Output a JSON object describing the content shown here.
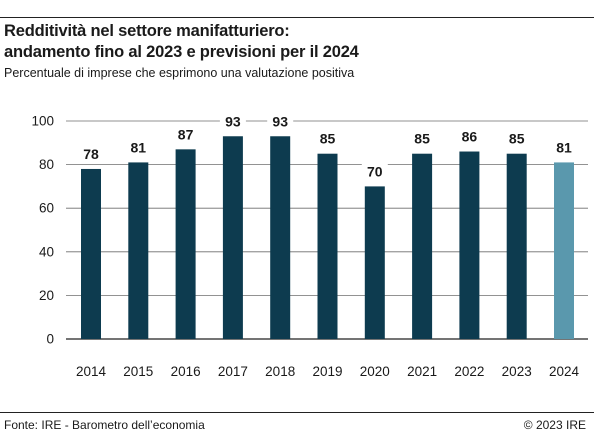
{
  "header": {
    "title_line1": "Redditività nel settore manifatturiero:",
    "title_line2": "andamento fino al 2023 e previsioni per il 2024",
    "subtitle": "Percentuale di imprese che esprimono una valutazione positiva"
  },
  "footer": {
    "source": "Fontе: IRE - Barometro dell’economia",
    "copyright": "© 2023 IRE"
  },
  "colors": {
    "actual": "#0d3b4f",
    "forecast": "#5a98ad",
    "grid": "#6e6e6e",
    "text": "#1a1a1a"
  },
  "chart_data": {
    "type": "bar",
    "categories": [
      "2014",
      "2015",
      "2016",
      "2017",
      "2018",
      "2019",
      "2020",
      "2021",
      "2022",
      "2023",
      "2024"
    ],
    "values": [
      78,
      81,
      87,
      93,
      93,
      85,
      70,
      85,
      86,
      85,
      81
    ],
    "forecast_categories": [
      "2024"
    ],
    "ylim": [
      0,
      100
    ],
    "yticks": [
      0,
      20,
      40,
      60,
      80,
      100
    ],
    "grid": true,
    "xlabel": "",
    "ylabel": ""
  }
}
